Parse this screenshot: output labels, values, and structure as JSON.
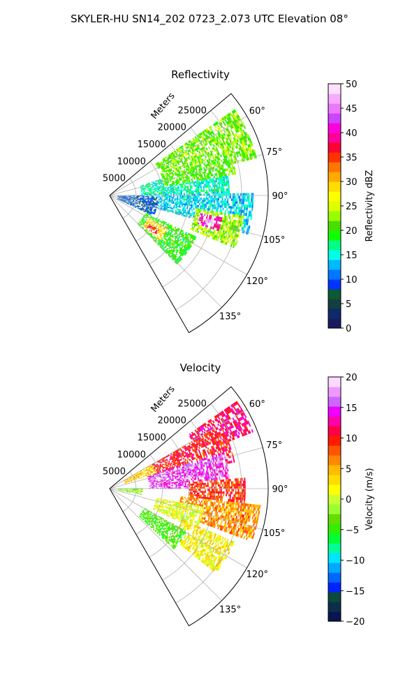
{
  "figure": {
    "title": "SKYLER-HU  SN14_202  0723_2.073 UTC Elevation 08°"
  },
  "chart_data": [
    {
      "type": "heatmap",
      "subtype": "polar-sector-ppi",
      "title": "Reflectivity",
      "radial_label": "Meters",
      "radial_ticks": [
        5000,
        10000,
        15000,
        20000,
        25000
      ],
      "radial_range": [
        0,
        30000
      ],
      "azimuth_range_deg": [
        50,
        150
      ],
      "azimuth_ticks": [
        "60°",
        "75°",
        "90°",
        "105°",
        "120°",
        "135°"
      ],
      "azimuth_tick_values": [
        60,
        75,
        90,
        105,
        120,
        135
      ],
      "grid": true,
      "colorbar": {
        "label": "Reflectivity dBZ",
        "range": [
          0,
          50
        ],
        "ticks": [
          "0",
          "5",
          "10",
          "15",
          "20",
          "25",
          "30",
          "35",
          "40",
          "45",
          "50"
        ],
        "colors": [
          "#1a1a5e",
          "#0d2a6b",
          "#123f3f",
          "#0b5a34",
          "#0033ff",
          "#0077ff",
          "#00b8ff",
          "#00ffe6",
          "#00ff88",
          "#11ff00",
          "#4ade00",
          "#99ff00",
          "#ddff00",
          "#ffff00",
          "#ffdd00",
          "#ffaa00",
          "#ff7700",
          "#ff3300",
          "#ff0033",
          "#ff0099",
          "#ff00dd",
          "#cc44ff",
          "#ee77ff",
          "#f7aaff",
          "#fde0ff"
        ]
      },
      "echo_regions": [
        {
          "az": [
            55,
            75
          ],
          "r": [
            0.35,
            0.95
          ],
          "value": 22
        },
        {
          "az": [
            72,
            98
          ],
          "r": [
            0.2,
            0.75
          ],
          "value": 16
        },
        {
          "az": [
            70,
            80
          ],
          "r": [
            0.35,
            0.8
          ],
          "value": 21
        },
        {
          "az": [
            88,
            105
          ],
          "r": [
            0.1,
            0.9
          ],
          "value": 14
        },
        {
          "az": [
            98,
            112
          ],
          "r": [
            0.55,
            0.85
          ],
          "value": 23
        },
        {
          "az": [
            100,
            108
          ],
          "r": [
            0.58,
            0.72
          ],
          "value": 40
        },
        {
          "az": [
            103,
            106
          ],
          "r": [
            0.62,
            0.68
          ],
          "value": 46
        },
        {
          "az": [
            115,
            135
          ],
          "r": [
            0.25,
            0.6
          ],
          "value": 20
        },
        {
          "az": [
            120,
            132
          ],
          "r": [
            0.28,
            0.42
          ],
          "value": 29
        },
        {
          "az": [
            124,
            131
          ],
          "r": [
            0.3,
            0.38
          ],
          "value": 35
        },
        {
          "az": [
            90,
            115
          ],
          "r": [
            0.05,
            0.3
          ],
          "value": 9
        }
      ]
    },
    {
      "type": "heatmap",
      "subtype": "polar-sector-ppi",
      "title": "Velocity",
      "radial_label": "Meters",
      "radial_ticks": [
        5000,
        10000,
        15000,
        20000,
        25000
      ],
      "radial_range": [
        0,
        30000
      ],
      "azimuth_range_deg": [
        50,
        150
      ],
      "azimuth_ticks": [
        "60°",
        "75°",
        "90°",
        "105°",
        "120°",
        "135°"
      ],
      "azimuth_tick_values": [
        60,
        75,
        90,
        105,
        120,
        135
      ],
      "grid": true,
      "colorbar": {
        "label": "Velocity (m/s)",
        "range": [
          -20,
          20
        ],
        "ticks": [
          "−20",
          "−15",
          "−10",
          "−5",
          "0",
          "5",
          "10",
          "15",
          "20"
        ],
        "colors": [
          "#0a1450",
          "#0d2e4a",
          "#0b4a3c",
          "#0022ff",
          "#0066ff",
          "#00aaff",
          "#00e5ff",
          "#00ff99",
          "#00ff33",
          "#33ee00",
          "#66dd00",
          "#99ff33",
          "#ccff33",
          "#ffff00",
          "#ffdd00",
          "#ffbb00",
          "#ff8800",
          "#ff5500",
          "#ff1a00",
          "#ff0044",
          "#ff00aa",
          "#ee00ff",
          "#cc66ff",
          "#ee99ff",
          "#fcd9ff"
        ]
      },
      "echo_regions": [
        {
          "az": [
            55,
            68
          ],
          "r": [
            0.6,
            0.97
          ],
          "value": 12
        },
        {
          "az": [
            60,
            78
          ],
          "r": [
            0.3,
            0.8
          ],
          "value": 10
        },
        {
          "az": [
            72,
            90
          ],
          "r": [
            0.25,
            0.75
          ],
          "value": 15
        },
        {
          "az": [
            85,
            100
          ],
          "r": [
            0.5,
            0.85
          ],
          "value": 9
        },
        {
          "az": [
            96,
            110
          ],
          "r": [
            0.45,
            0.95
          ],
          "value": 6
        },
        {
          "az": [
            100,
            115
          ],
          "r": [
            0.3,
            0.6
          ],
          "value": 1
        },
        {
          "az": [
            112,
            128
          ],
          "r": [
            0.5,
            0.85
          ],
          "value": 2
        },
        {
          "az": [
            118,
            133
          ],
          "r": [
            0.25,
            0.55
          ],
          "value": -4
        },
        {
          "az": [
            88,
            100
          ],
          "r": [
            0.05,
            0.2
          ],
          "value": -2
        },
        {
          "az": [
            60,
            72
          ],
          "r": [
            0.1,
            0.3
          ],
          "value": 4
        }
      ]
    }
  ]
}
